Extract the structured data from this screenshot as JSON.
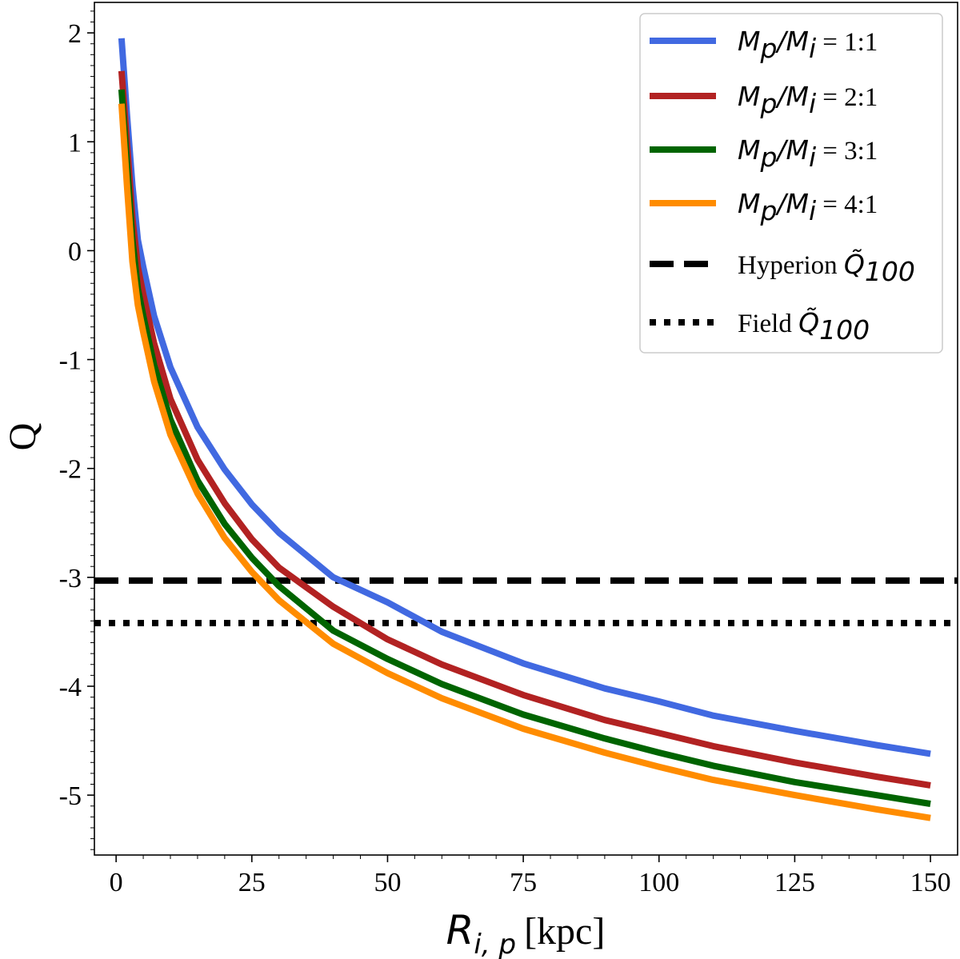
{
  "chart_data": {
    "type": "line",
    "xlabel": {
      "main": "R",
      "sub": "i, p",
      "unit": "[kpc]"
    },
    "ylabel": "Q",
    "xlim": [
      -4,
      155
    ],
    "ylim": [
      -5.55,
      2.28
    ],
    "xticks": [
      0,
      25,
      50,
      75,
      100,
      125,
      150
    ],
    "yticks": [
      2,
      1,
      0,
      -1,
      -2,
      -3,
      -4,
      -5
    ],
    "ytick_labels": [
      "2",
      "1",
      "0",
      "-1",
      "-2",
      "-3",
      "-4",
      "-5"
    ],
    "legend_position": "top-right",
    "series": [
      {
        "name": "M_p/M_i = 1:1",
        "ratio": "= 1:1",
        "color": "#4169e1",
        "x": [
          1,
          2,
          3,
          4,
          5,
          7,
          10,
          15,
          20,
          25,
          30,
          40,
          50,
          60,
          75,
          90,
          100,
          110,
          125,
          140,
          150
        ],
        "y": [
          1.95,
          1.25,
          0.6,
          0.1,
          -0.15,
          -0.6,
          -1.07,
          -1.62,
          -2.01,
          -2.33,
          -2.59,
          -3.0,
          -3.23,
          -3.5,
          -3.79,
          -4.02,
          -4.14,
          -4.27,
          -4.41,
          -4.54,
          -4.62
        ]
      },
      {
        "name": "M_p/M_i = 2:1",
        "ratio": "= 2:1",
        "color": "#b22222",
        "x": [
          1,
          2,
          3,
          4,
          5,
          7,
          10,
          15,
          20,
          25,
          30,
          40,
          50,
          60,
          75,
          90,
          100,
          110,
          125,
          140,
          150
        ],
        "y": [
          1.65,
          1.0,
          0.3,
          -0.15,
          -0.4,
          -0.85,
          -1.36,
          -1.92,
          -2.32,
          -2.65,
          -2.91,
          -3.27,
          -3.57,
          -3.8,
          -4.08,
          -4.31,
          -4.43,
          -4.55,
          -4.7,
          -4.83,
          -4.91
        ]
      },
      {
        "name": "M_p/M_i = 3:1",
        "ratio": "= 3:1",
        "color": "#006400",
        "x": [
          1,
          2,
          3,
          4,
          5,
          7,
          10,
          15,
          20,
          25,
          30,
          40,
          50,
          60,
          75,
          90,
          100,
          110,
          125,
          140,
          150
        ],
        "y": [
          1.48,
          0.8,
          0.1,
          -0.35,
          -0.6,
          -1.05,
          -1.55,
          -2.11,
          -2.51,
          -2.82,
          -3.08,
          -3.49,
          -3.75,
          -3.98,
          -4.26,
          -4.48,
          -4.61,
          -4.73,
          -4.88,
          -5.0,
          -5.08
        ]
      },
      {
        "name": "M_p/M_i = 4:1",
        "ratio": "= 4:1",
        "color": "#ff8c00",
        "x": [
          1,
          2,
          3,
          4,
          5,
          7,
          10,
          15,
          20,
          25,
          30,
          40,
          50,
          60,
          75,
          90,
          100,
          110,
          125,
          140,
          150
        ],
        "y": [
          1.35,
          0.6,
          -0.1,
          -0.5,
          -0.75,
          -1.2,
          -1.69,
          -2.23,
          -2.64,
          -2.95,
          -3.21,
          -3.61,
          -3.88,
          -4.11,
          -4.39,
          -4.61,
          -4.74,
          -4.86,
          -5.0,
          -5.13,
          -5.21
        ]
      }
    ],
    "reference_lines": [
      {
        "name": "Hyperion Q̃100",
        "label": "Hyperion",
        "y": -3.03,
        "style": "dashed",
        "color": "#000000"
      },
      {
        "name": "Field Q̃100",
        "label": "Field",
        "y": -3.42,
        "style": "dotted",
        "color": "#000000"
      }
    ]
  }
}
